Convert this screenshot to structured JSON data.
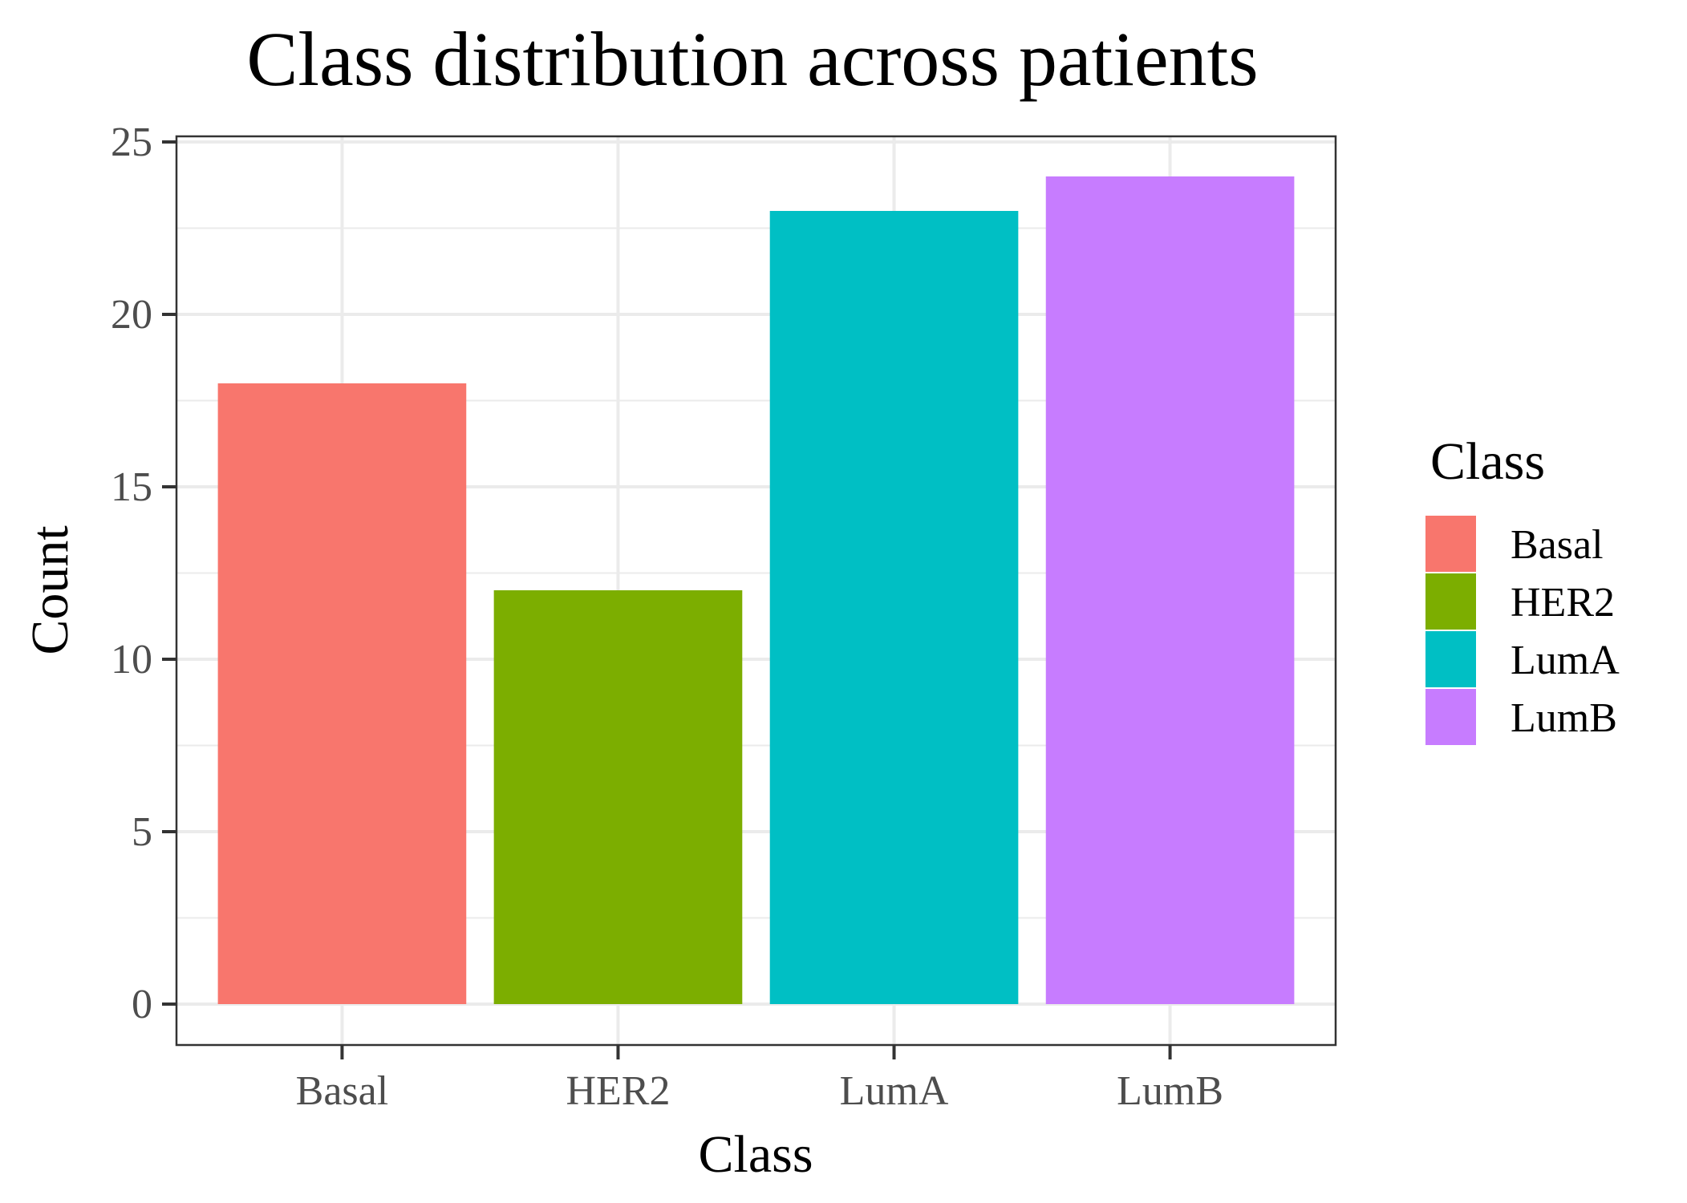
{
  "chart_data": {
    "type": "bar",
    "title": "Class distribution across patients",
    "xlabel": "Class",
    "ylabel": "Count",
    "categories": [
      "Basal",
      "HER2",
      "LumA",
      "LumB"
    ],
    "values": [
      18,
      12,
      23,
      24
    ],
    "colors": [
      "#F8766D",
      "#7CAE00",
      "#00BFC4",
      "#C77CFF"
    ],
    "ylim": [
      0,
      25
    ],
    "yticks": [
      0,
      5,
      10,
      15,
      20,
      25
    ],
    "grid": true,
    "legend": {
      "title": "Class",
      "position": "right",
      "items": [
        "Basal",
        "HER2",
        "LumA",
        "LumB"
      ]
    }
  }
}
